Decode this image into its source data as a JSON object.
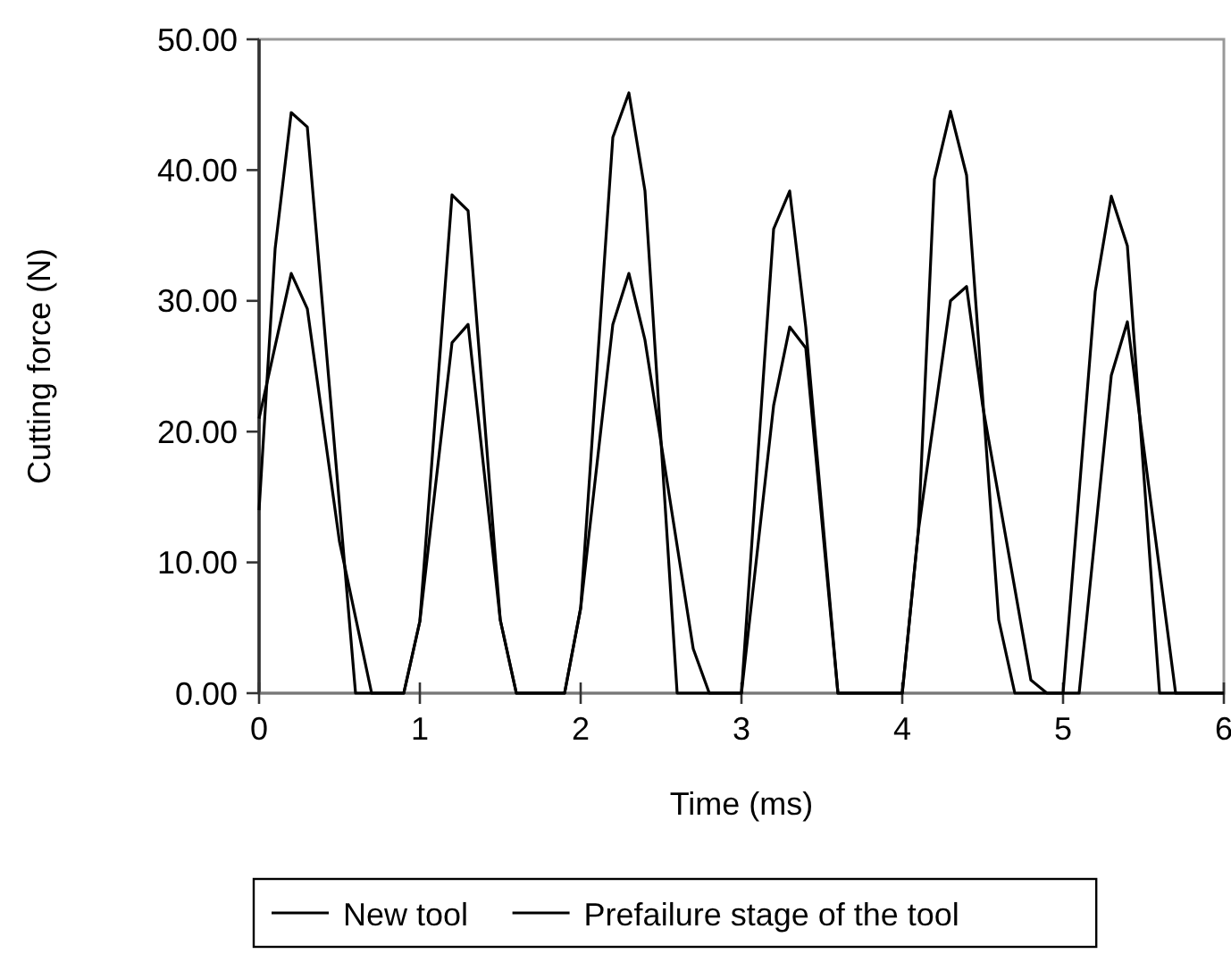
{
  "chart_data": {
    "type": "line",
    "xlabel": "Time (ms)",
    "ylabel": "Cutting force (N)",
    "xlim": [
      0,
      6
    ],
    "xticks": [
      0,
      1,
      2,
      3,
      4,
      5,
      6
    ],
    "ylim": [
      0,
      50
    ],
    "yticks": [
      {
        "value": 0,
        "label": "0.00"
      },
      {
        "value": 10,
        "label": "10.00"
      },
      {
        "value": 20,
        "label": "20.00"
      },
      {
        "value": 30,
        "label": "30.00"
      },
      {
        "value": 40,
        "label": "40.00"
      },
      {
        "value": 50,
        "label": "50.00"
      }
    ],
    "series": [
      {
        "name": "New tool",
        "color": "#000000",
        "x": [
          0,
          0.2,
          0.3,
          0.5,
          0.7,
          0.9,
          1.0,
          1.2,
          1.3,
          1.5,
          1.6,
          1.9,
          2.0,
          2.2,
          2.3,
          2.4,
          2.7,
          2.8,
          3.0,
          3.2,
          3.3,
          3.4,
          3.6,
          4.0,
          4.1,
          4.3,
          4.4,
          4.5,
          4.8,
          4.9,
          5.1,
          5.3,
          5.4,
          5.7,
          6.0
        ],
        "values": [
          21,
          32.1,
          29.4,
          11.6,
          0,
          0,
          5.5,
          26.8,
          28.2,
          5.6,
          0,
          0,
          6.5,
          28.2,
          32.1,
          27,
          3.4,
          0,
          0,
          22,
          28,
          26.4,
          0,
          0,
          12.4,
          30,
          31.1,
          22,
          1,
          0,
          0,
          24.3,
          28.4,
          0,
          0
        ]
      },
      {
        "name": "Prefailure stage of the tool",
        "color": "#000000",
        "x": [
          0,
          0.1,
          0.2,
          0.3,
          0.6,
          0.9,
          1.0,
          1.2,
          1.3,
          1.5,
          1.6,
          1.9,
          2.0,
          2.2,
          2.3,
          2.4,
          2.6,
          3.0,
          3.2,
          3.3,
          3.4,
          3.6,
          4.0,
          4.1,
          4.2,
          4.3,
          4.4,
          4.6,
          4.7,
          5.0,
          5.2,
          5.3,
          5.4,
          5.6,
          6.0
        ],
        "values": [
          14,
          34,
          44.4,
          43.3,
          0,
          0,
          5.5,
          38.1,
          36.9,
          5.6,
          0,
          0,
          6.5,
          42.5,
          45.9,
          38.4,
          0,
          0,
          35.5,
          38.4,
          28,
          0,
          0,
          12.4,
          39.3,
          44.5,
          39.6,
          5.6,
          0,
          0,
          30.7,
          38,
          34.2,
          0,
          0
        ]
      }
    ],
    "legend": "bottom",
    "grid": false,
    "marker": "none",
    "line_style": "solid"
  }
}
